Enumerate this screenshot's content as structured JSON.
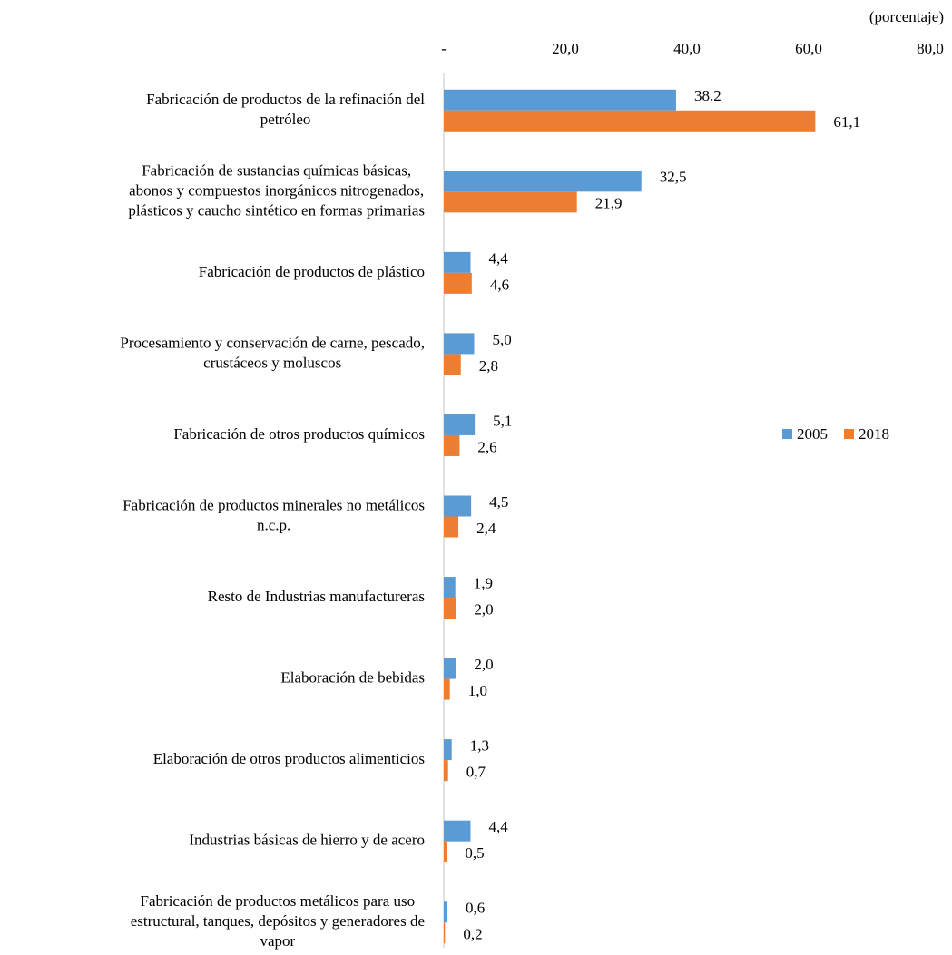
{
  "chart_data": {
    "type": "bar",
    "orientation": "horizontal",
    "unit_label": "(porcentaje)",
    "categories": [
      "Fabricación de productos de la refinación del\npetróleo",
      "Fabricación de sustancias químicas básicas,\nabonos y compuestos inorgánicos nitrogenados,\nplásticos y caucho sintético en formas primarias",
      "Fabricación de productos de plástico",
      "Procesamiento y conservación de carne, pescado,\ncrustáceos y moluscos",
      "Fabricación de otros productos químicos",
      "Fabricación de productos minerales no metálicos\nn.c.p.",
      "Resto de Industrias manufactureras",
      "Elaboración de bebidas",
      "Elaboración de otros productos alimenticios",
      "Industrias básicas de hierro y de acero",
      "Fabricación de productos metálicos para uso\nestructural, tanques, depósitos y generadores de\nvapor"
    ],
    "series": [
      {
        "name": "2005",
        "color": "#5b9bd5",
        "values": [
          38.2,
          32.5,
          4.4,
          5.0,
          5.1,
          4.5,
          1.9,
          2.0,
          1.3,
          4.4,
          0.6
        ],
        "value_labels": [
          "38,2",
          "32,5",
          "4,4",
          "5,0",
          "5,1",
          "4,5",
          "1,9",
          "2,0",
          "1,3",
          "4,4",
          "0,6"
        ]
      },
      {
        "name": "2018",
        "color": "#ed7d31",
        "values": [
          61.1,
          21.9,
          4.6,
          2.8,
          2.6,
          2.4,
          2.0,
          1.0,
          0.7,
          0.5,
          0.2
        ],
        "value_labels": [
          "61,1",
          "21,9",
          "4,6",
          "2,8",
          "2,6",
          "2,4",
          "2,0",
          "1,0",
          "0,7",
          "0,5",
          "0,2"
        ]
      }
    ],
    "xlim": [
      0,
      80
    ],
    "xticks": [
      {
        "value": 0,
        "label": "-"
      },
      {
        "value": 20,
        "label": "20,0"
      },
      {
        "value": 40,
        "label": "40,0"
      },
      {
        "value": 60,
        "label": "60,0"
      },
      {
        "value": 80,
        "label": "80,0"
      }
    ],
    "legend": "right"
  }
}
